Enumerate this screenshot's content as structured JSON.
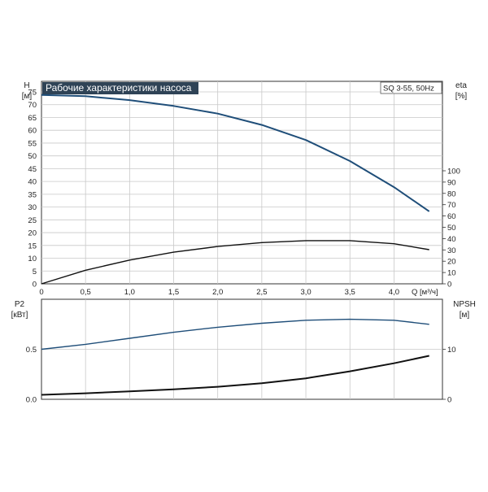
{
  "title": "Рабочие характеристики насоса",
  "model": "SQ 3-55, 50Hz",
  "colors": {
    "blue": "#1f4e79",
    "black": "#111111",
    "grid": "#c8c8c8",
    "frame": "#333333",
    "title_bg": "#2f4356"
  },
  "top_left_axis": {
    "name": "H",
    "unit": "[м]"
  },
  "top_right_axis": {
    "name": "eta",
    "unit": "[%]"
  },
  "bottom_left_axis": {
    "name": "P2",
    "unit": "[кВт]"
  },
  "bottom_right_axis": {
    "name": "NPSH",
    "unit": "[м]"
  },
  "x_axis": {
    "label": "Q [м³/ч]"
  },
  "chart_data": [
    {
      "type": "line",
      "panel": "top",
      "title": "Рабочие характеристики насоса",
      "x_ticks": [
        "0",
        "0,5",
        "1,0",
        "1,5",
        "2,0",
        "2,5",
        "3,0",
        "3,5",
        "4,0"
      ],
      "xlim": [
        0,
        4.55
      ],
      "ylim_left": [
        0,
        75
      ],
      "y_ticks_left": [
        0,
        5,
        10,
        15,
        20,
        25,
        30,
        35,
        40,
        45,
        50,
        55,
        60,
        65,
        70,
        75
      ],
      "ylim_right": [
        0,
        100
      ],
      "y_ticks_right": [
        0,
        10,
        20,
        30,
        40,
        50,
        60,
        70,
        80,
        90,
        100
      ],
      "grid": true,
      "series": [
        {
          "axis": "left",
          "color": "blue",
          "x": [
            0,
            0.5,
            1.0,
            1.5,
            2.0,
            2.5,
            3.0,
            3.5,
            4.0,
            4.4
          ],
          "y": [
            73.8,
            73.3,
            71.8,
            69.5,
            66.5,
            62.1,
            56.2,
            48.0,
            37.8,
            28.3
          ]
        },
        {
          "axis": "right",
          "color": "black",
          "x": [
            0,
            0.5,
            1.0,
            1.5,
            2.0,
            2.5,
            3.0,
            3.5,
            4.0,
            4.4
          ],
          "y": [
            0,
            12,
            21,
            28,
            33,
            36.5,
            38.2,
            38.2,
            35.5,
            30.2
          ]
        }
      ]
    },
    {
      "type": "line",
      "panel": "bottom",
      "xlim": [
        0,
        4.55
      ],
      "ylim_left": [
        0,
        1.0
      ],
      "y_ticks_left": [
        "0.0",
        "0.5"
      ],
      "y_tick_values_left": [
        0,
        0.5
      ],
      "ylim_right": [
        0,
        20
      ],
      "y_ticks_right": [
        "0",
        "10"
      ],
      "y_tick_values_right": [
        0,
        10
      ],
      "grid": true,
      "series": [
        {
          "axis": "left",
          "color": "blue",
          "x": [
            0,
            0.5,
            1.0,
            1.5,
            2.0,
            2.5,
            3.0,
            3.5,
            4.0,
            4.4
          ],
          "y": [
            0.5,
            0.55,
            0.61,
            0.67,
            0.72,
            0.76,
            0.79,
            0.8,
            0.79,
            0.75
          ]
        },
        {
          "axis": "right",
          "color": "black",
          "x": [
            0,
            0.5,
            1.0,
            1.5,
            2.0,
            2.5,
            3.0,
            3.5,
            4.0,
            4.4
          ],
          "y": [
            0.9,
            1.2,
            1.6,
            2.0,
            2.5,
            3.2,
            4.2,
            5.6,
            7.2,
            8.7
          ]
        }
      ]
    }
  ]
}
